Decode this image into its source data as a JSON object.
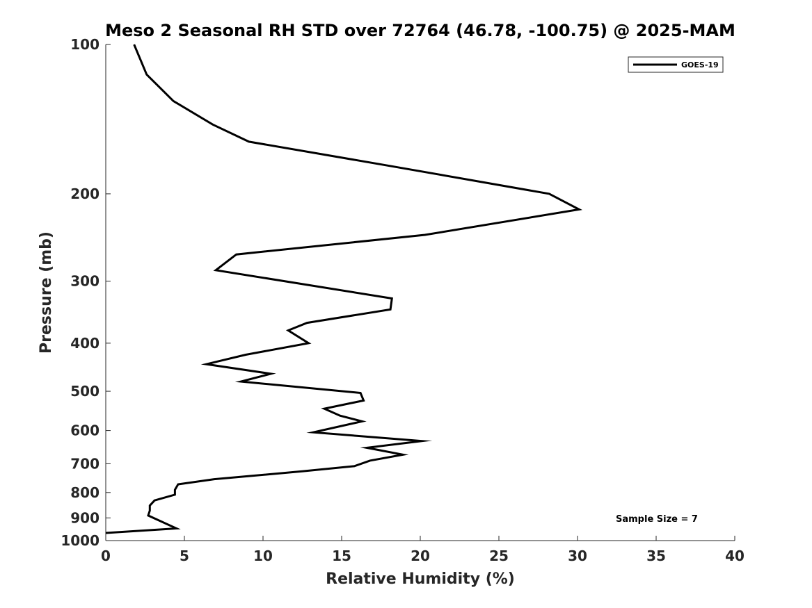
{
  "chart_data": {
    "type": "line",
    "title": "Meso 2 Seasonal RH STD over 72764 (46.78, -100.75) @ 2025-MAM",
    "xlabel": "Relative Humidity (%)",
    "ylabel": "Pressure (mb)",
    "xlim": [
      0,
      40
    ],
    "ylim": [
      100,
      1000
    ],
    "y_scale": "log",
    "y_reversed": true,
    "grid": false,
    "x_ticks": [
      0,
      5,
      10,
      15,
      20,
      25,
      30,
      35,
      40
    ],
    "y_ticks": [
      100,
      200,
      300,
      400,
      500,
      600,
      700,
      800,
      900,
      1000
    ],
    "legend": {
      "entries": [
        "GOES-19"
      ],
      "placement": "top-right"
    },
    "annotation": "Sample Size = 7",
    "series": [
      {
        "name": "GOES-19",
        "color": "#000000",
        "x": [
          1.8,
          2.6,
          4.3,
          6.8,
          9.1,
          18.2,
          28.2,
          30.1,
          20.3,
          8.3,
          7.0,
          18.2,
          18.1,
          12.8,
          11.6,
          12.9,
          8.9,
          6.4,
          10.5,
          8.6,
          16.2,
          16.4,
          13.9,
          14.9,
          16.3,
          13.2,
          20.1,
          16.6,
          18.9,
          16.8,
          15.8,
          12.5,
          6.9,
          4.6,
          4.4,
          4.4,
          3.1,
          2.8,
          2.8,
          2.7,
          4.5,
          0.0
        ],
        "y": [
          100,
          115,
          130,
          145,
          157,
          176,
          200,
          215,
          242,
          265,
          285,
          325,
          342,
          364,
          377,
          400,
          422,
          441,
          461,
          478,
          504,
          522,
          542,
          560,
          575,
          605,
          630,
          650,
          671,
          690,
          708,
          725,
          752,
          770,
          790,
          808,
          830,
          850,
          870,
          890,
          945,
          965
        ]
      }
    ]
  }
}
